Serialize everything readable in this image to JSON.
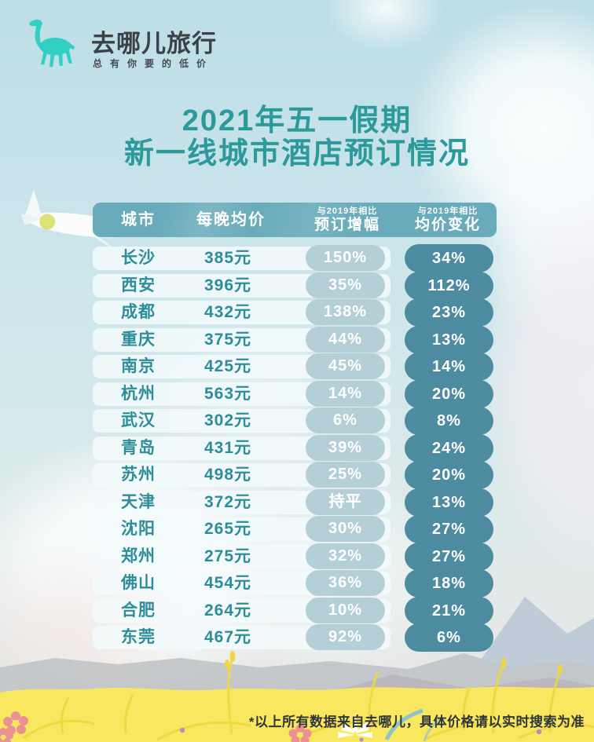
{
  "logo": {
    "brand": "去哪儿旅行",
    "tagline": "总有你要的低价",
    "icon": "camel-icon"
  },
  "title": {
    "line1": "2021年五一假期",
    "line2": "新一线城市酒店预订情况"
  },
  "table": {
    "headers": {
      "city": "城市",
      "price": "每晚均价",
      "compare_note": "与2019年相比",
      "booking_growth": "预订增幅",
      "price_change": "均价变化"
    },
    "rows": [
      {
        "city": "长沙",
        "price": "385元",
        "booking_growth": "150%",
        "price_change": "34%"
      },
      {
        "city": "西安",
        "price": "396元",
        "booking_growth": "35%",
        "price_change": "112%"
      },
      {
        "city": "成都",
        "price": "432元",
        "booking_growth": "138%",
        "price_change": "23%"
      },
      {
        "city": "重庆",
        "price": "375元",
        "booking_growth": "44%",
        "price_change": "13%"
      },
      {
        "city": "南京",
        "price": "425元",
        "booking_growth": "45%",
        "price_change": "14%"
      },
      {
        "city": "杭州",
        "price": "563元",
        "booking_growth": "14%",
        "price_change": "20%"
      },
      {
        "city": "武汉",
        "price": "302元",
        "booking_growth": "6%",
        "price_change": "8%"
      },
      {
        "city": "青岛",
        "price": "431元",
        "booking_growth": "39%",
        "price_change": "24%"
      },
      {
        "city": "苏州",
        "price": "498元",
        "booking_growth": "25%",
        "price_change": "20%"
      },
      {
        "city": "天津",
        "price": "372元",
        "booking_growth": "持平",
        "price_change": "13%"
      },
      {
        "city": "沈阳",
        "price": "265元",
        "booking_growth": "30%",
        "price_change": "27%"
      },
      {
        "city": "郑州",
        "price": "275元",
        "booking_growth": "32%",
        "price_change": "27%"
      },
      {
        "city": "佛山",
        "price": "454元",
        "booking_growth": "36%",
        "price_change": "18%"
      },
      {
        "city": "合肥",
        "price": "264元",
        "booking_growth": "10%",
        "price_change": "21%"
      },
      {
        "city": "东莞",
        "price": "467元",
        "booking_growth": "92%",
        "price_change": "6%"
      }
    ]
  },
  "chart_data": {
    "type": "table",
    "title": "2021年五一假期 新一线城市酒店预订情况",
    "columns": [
      "城市",
      "每晚均价",
      "与2019年相比 预订增幅",
      "与2019年相比 均价变化"
    ],
    "rows": [
      [
        "长沙",
        "385元",
        "150%",
        "34%"
      ],
      [
        "西安",
        "396元",
        "35%",
        "112%"
      ],
      [
        "成都",
        "432元",
        "138%",
        "23%"
      ],
      [
        "重庆",
        "375元",
        "44%",
        "13%"
      ],
      [
        "南京",
        "425元",
        "45%",
        "14%"
      ],
      [
        "杭州",
        "563元",
        "14%",
        "20%"
      ],
      [
        "武汉",
        "302元",
        "6%",
        "8%"
      ],
      [
        "青岛",
        "431元",
        "39%",
        "24%"
      ],
      [
        "苏州",
        "498元",
        "25%",
        "20%"
      ],
      [
        "天津",
        "372元",
        "持平",
        "13%"
      ],
      [
        "沈阳",
        "265元",
        "30%",
        "27%"
      ],
      [
        "郑州",
        "275元",
        "32%",
        "27%"
      ],
      [
        "佛山",
        "454元",
        "36%",
        "18%"
      ],
      [
        "合肥",
        "264元",
        "10%",
        "21%"
      ],
      [
        "东莞",
        "467元",
        "92%",
        "6%"
      ]
    ]
  },
  "footer": {
    "note": "*以上所有数据来自去哪儿，具体价格请以实时搜索为准"
  },
  "colors": {
    "brand_teal": "#31d0c2",
    "title_teal": "#2c999b",
    "header_bg": "#69abba",
    "light_pill_bg": "#b4cfd6",
    "dark_pill_bg": "#4d8ba0",
    "cell_text": "#2e8d9a",
    "grass_yellow": "#f8e75f"
  }
}
